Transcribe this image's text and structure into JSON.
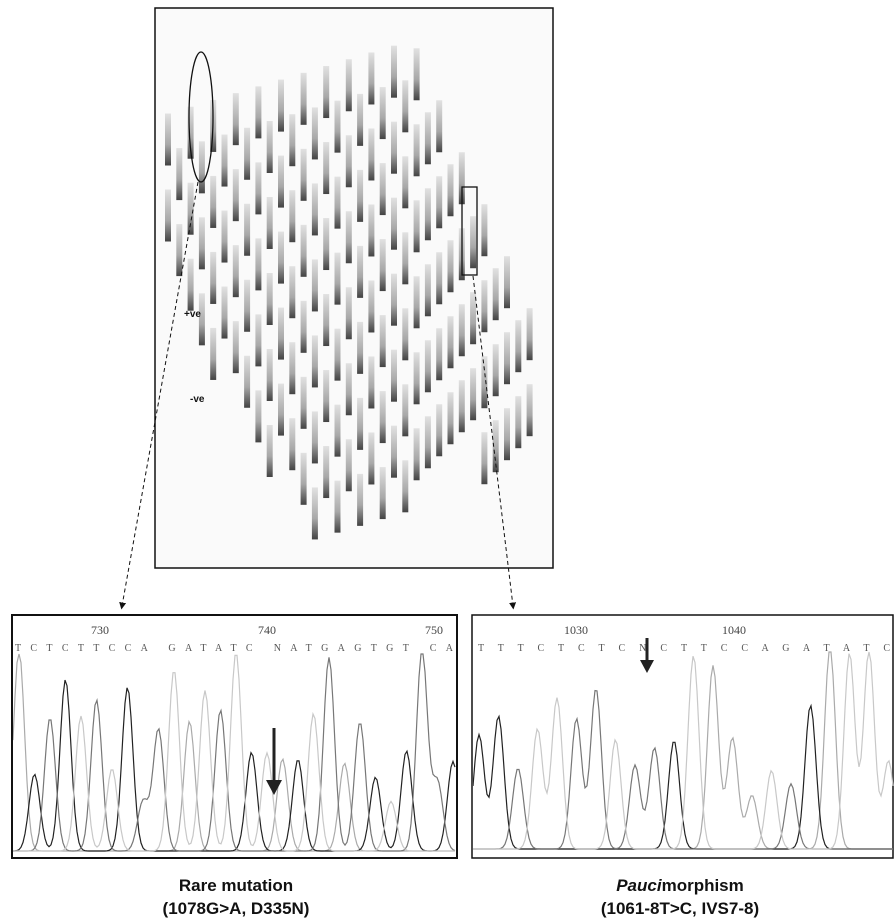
{
  "gel": {
    "positive_label": "+ve",
    "negative_label": "-ve"
  },
  "left_panel": {
    "positions": [
      "730",
      "740",
      "750"
    ],
    "sequence": "TCTCTTCCA GATATC NATGAGTGT CA",
    "caption_title": "Rare mutation",
    "caption_detail": "(1078G>A, D335N)"
  },
  "right_panel": {
    "positions": [
      "1030",
      "1040"
    ],
    "sequence": "T T T C T C T C N C T T C C A G A T A T C",
    "caption_italic": "Pauci",
    "caption_rest": "morphism",
    "caption_detail": "(1061-8T>C, IVS7-8)"
  }
}
